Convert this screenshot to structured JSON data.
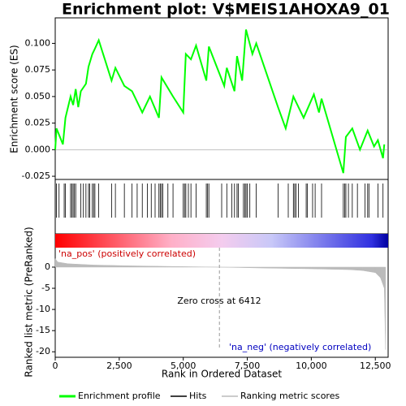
{
  "chart_data": {
    "type": "gsea",
    "title": "Enrichment plot: V$MEIS1AHOXA9_01",
    "ylabel": "Enrichment score (ES)",
    "ylabel2": "Ranked list metric (PreRanked)",
    "xlabel": "Rank in Ordered Dataset",
    "pos_label": "'na_pos' (positively correlated)",
    "neg_label": "'na_neg' (negatively correlated)",
    "zero_cross": 6412,
    "zero_cross_label": "Zero cross at 6412",
    "xlim": [
      0,
      13000
    ],
    "xticks": [
      0,
      {
        "value": 2500,
        "label": "2,500"
      },
      {
        "value": 5000,
        "label": "5,000"
      },
      {
        "value": 7500,
        "label": "7,500"
      },
      {
        "value": 10000,
        "label": "10,000"
      },
      {
        "value": 12500,
        "label": "12,500"
      }
    ],
    "ylim": [
      -0.028,
      0.124
    ],
    "yticks": [
      {
        "value": -0.025,
        "label": "-0.025"
      },
      {
        "value": 0,
        "label": "0.000"
      },
      {
        "value": 0.025,
        "label": "0.025"
      },
      {
        "value": 0.05,
        "label": "0.050"
      },
      {
        "value": 0.075,
        "label": "0.075"
      },
      {
        "value": 0.1,
        "label": "0.100"
      }
    ],
    "y2lim": [
      4.6,
      -21.3
    ],
    "y2ticks": [
      0,
      -5,
      -10,
      -15,
      -20
    ],
    "series": [
      {
        "name": "Enrichment profile",
        "color": "#00ff00",
        "x": [
          0,
          50,
          300,
          400,
          600,
          700,
          800,
          900,
          1000,
          1200,
          1300,
          1450,
          1550,
          1700,
          2200,
          2350,
          2700,
          3000,
          3400,
          3700,
          4050,
          4150,
          4600,
          5000,
          5100,
          5300,
          5500,
          5900,
          6000,
          6600,
          6700,
          7000,
          7100,
          7300,
          7450,
          7700,
          7850,
          8700,
          9000,
          9300,
          9700,
          10100,
          10300,
          10400,
          11250,
          11350,
          11600,
          11900,
          12200,
          12450,
          12600,
          12800,
          12850
        ],
        "values": [
          0,
          0.02,
          0.005,
          0.03,
          0.05,
          0.042,
          0.057,
          0.04,
          0.055,
          0.062,
          0.078,
          0.09,
          0.095,
          0.103,
          0.065,
          0.077,
          0.06,
          0.055,
          0.035,
          0.05,
          0.03,
          0.068,
          0.05,
          0.035,
          0.09,
          0.085,
          0.098,
          0.065,
          0.097,
          0.06,
          0.077,
          0.055,
          0.088,
          0.065,
          0.113,
          0.09,
          0.1,
          0.04,
          0.02,
          0.05,
          0.03,
          0.052,
          0.035,
          0.048,
          -0.022,
          0.012,
          0.02,
          0,
          0.018,
          0.003,
          0.009,
          -0.008,
          0.005
        ]
      },
      {
        "name": "Hits",
        "color": "#000000",
        "values": [
          50,
          150,
          350,
          400,
          600,
          650,
          700,
          750,
          800,
          1000,
          1100,
          1200,
          1300,
          1350,
          1450,
          1500,
          1550,
          1700,
          2200,
          2350,
          2700,
          3000,
          3200,
          3400,
          3600,
          3750,
          3900,
          4050,
          4100,
          4150,
          4200,
          4400,
          4600,
          5000,
          5050,
          5100,
          5200,
          5300,
          5500,
          5900,
          5950,
          6000,
          6500,
          6700,
          6900,
          7000,
          7100,
          7150,
          7350,
          7400,
          7450,
          7500,
          7600,
          7850,
          8700,
          9100,
          9300,
          9350,
          9400,
          9500,
          9800,
          9850,
          10050,
          10150,
          10400,
          11250,
          11300,
          11350,
          11450,
          11600,
          11800,
          12100,
          12200,
          12250,
          12600,
          12800
        ]
      },
      {
        "name": "Ranking metric scores",
        "color": "#bbbbbb",
        "axis": "y2",
        "x": [
          0,
          100,
          500,
          1500,
          3000,
          5000,
          6412,
          8000,
          10000,
          11500,
          12000,
          12500,
          12700,
          12850,
          12900
        ],
        "values": [
          2.0,
          1.2,
          0.8,
          0.5,
          0.3,
          0.12,
          0,
          -0.2,
          -0.4,
          -0.6,
          -0.8,
          -1.3,
          -2.5,
          -5,
          -19.5
        ]
      }
    ]
  }
}
